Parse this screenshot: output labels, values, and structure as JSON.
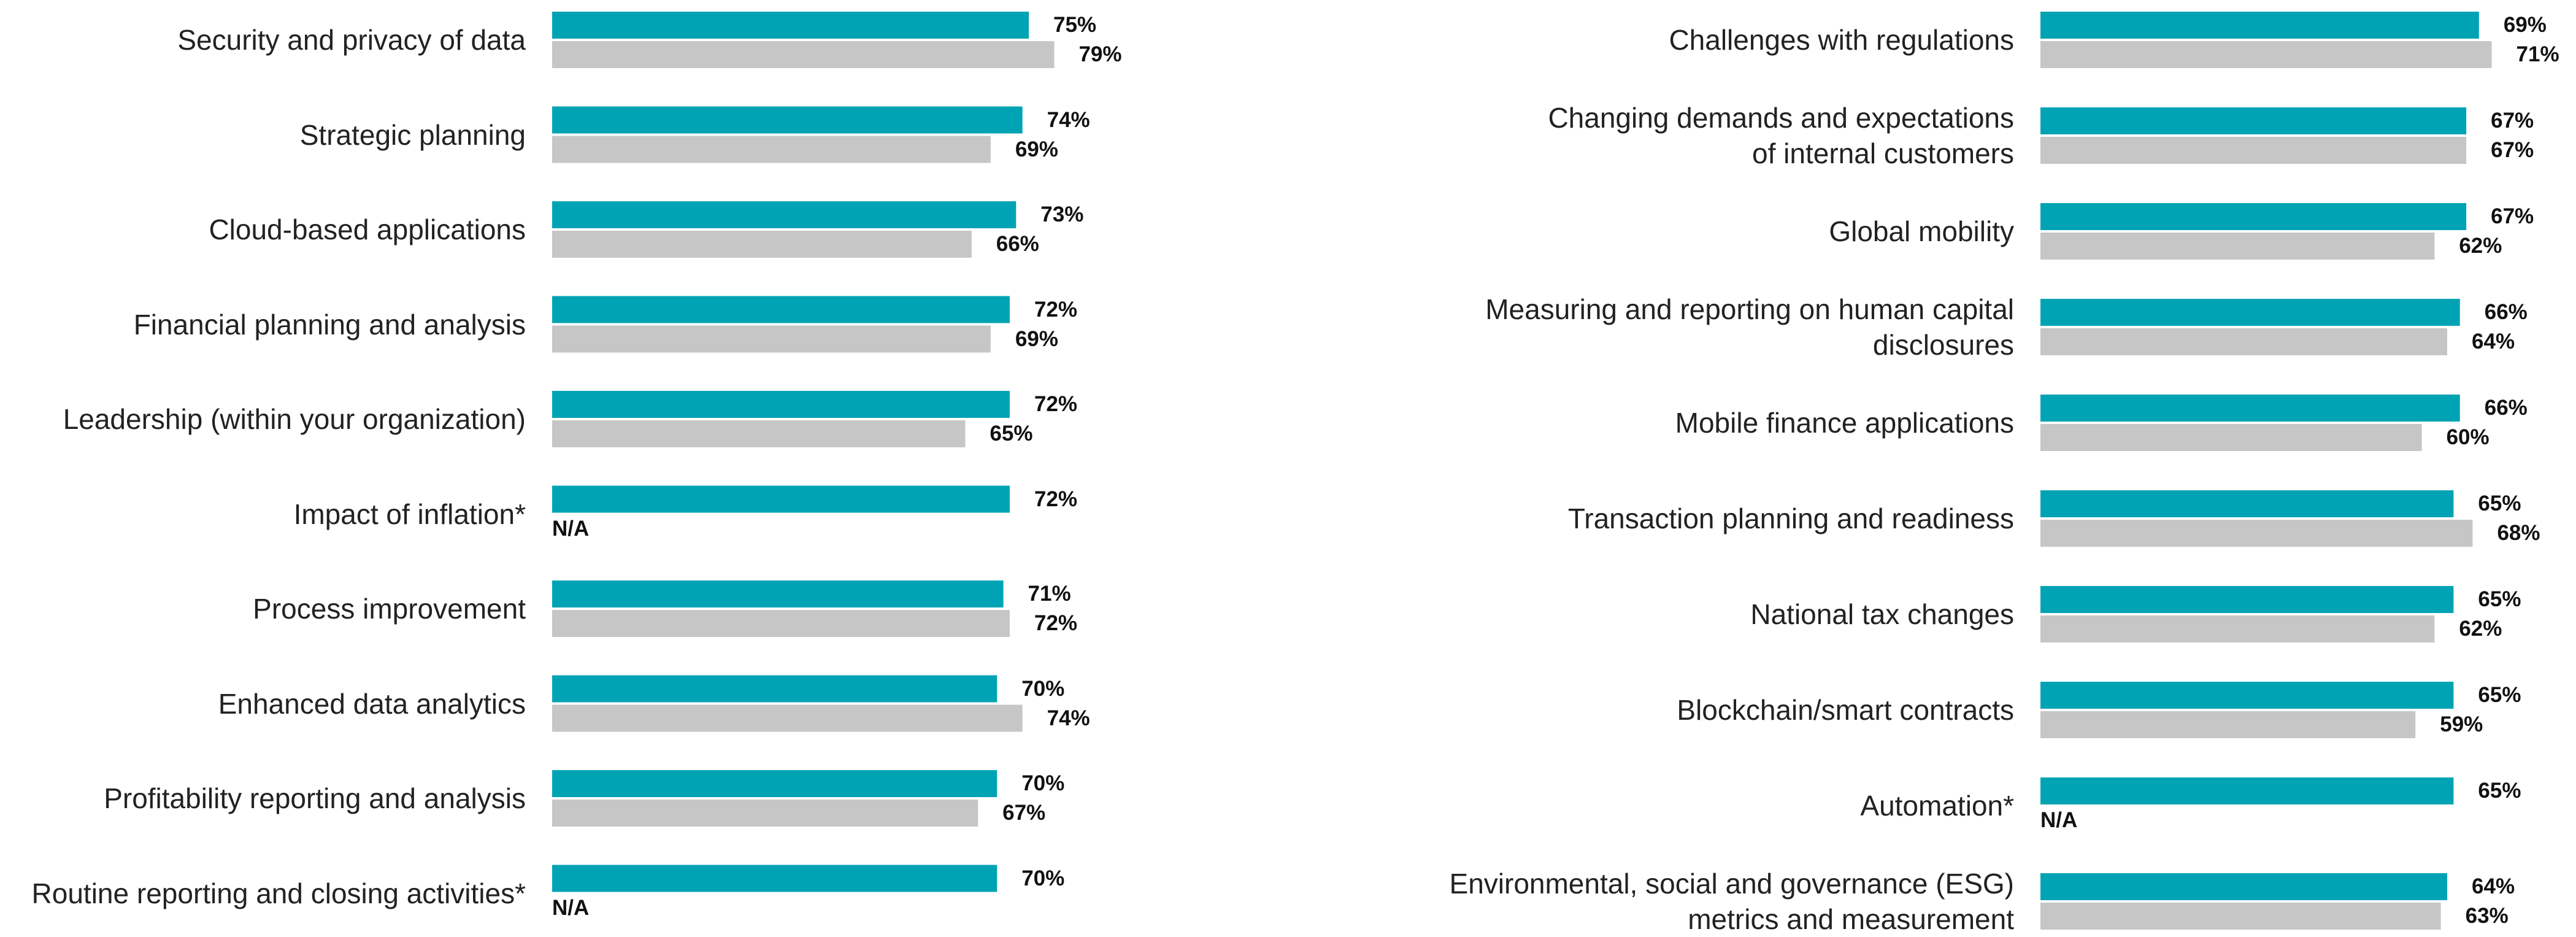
{
  "chart_data": [
    {
      "type": "bar",
      "orientation": "horizontal",
      "categories": [
        "Security and privacy of data",
        "Strategic planning",
        "Cloud-based applications",
        "Financial planning and analysis",
        "Leadership (within your organization)",
        "Impact of inflation*",
        "Process improvement",
        "Enhanced data analytics",
        "Profitability reporting and analysis",
        "Routine reporting and closing activities*"
      ],
      "xlim": [
        0,
        100
      ],
      "series": [
        {
          "color": "#00a3b4",
          "values": [
            75,
            74,
            73,
            72,
            72,
            72,
            71,
            70,
            70,
            70
          ],
          "value_labels": [
            "75%",
            "74%",
            "73%",
            "72%",
            "72%",
            "72%",
            "71%",
            "70%",
            "70%",
            "70%"
          ]
        },
        {
          "color": "#c6c6c6",
          "values": [
            79,
            69,
            66,
            69,
            65,
            null,
            72,
            74,
            67,
            null
          ],
          "value_labels": [
            "79%",
            "69%",
            "66%",
            "69%",
            "65%",
            "N/A",
            "72%",
            "74%",
            "67%",
            "N/A"
          ]
        }
      ]
    },
    {
      "type": "bar",
      "orientation": "horizontal",
      "categories": [
        "Challenges with regulations",
        "Changing demands and expectations\nof internal customers",
        "Global mobility",
        "Measuring and reporting on human capital\ndisclosures",
        "Mobile finance applications",
        "Transaction planning and readiness",
        "National tax changes",
        "Blockchain/smart contracts",
        "Automation*",
        "Environmental, social and governance (ESG)\nmetrics and measurement"
      ],
      "xlim": [
        0,
        100
      ],
      "series": [
        {
          "color": "#00a3b4",
          "values": [
            69,
            67,
            67,
            66,
            66,
            65,
            65,
            65,
            65,
            64
          ],
          "value_labels": [
            "69%",
            "67%",
            "67%",
            "66%",
            "66%",
            "65%",
            "65%",
            "65%",
            "65%",
            "64%"
          ]
        },
        {
          "color": "#c6c6c6",
          "values": [
            71,
            67,
            62,
            64,
            60,
            68,
            62,
            59,
            null,
            63
          ],
          "value_labels": [
            "71%",
            "67%",
            "62%",
            "64%",
            "60%",
            "68%",
            "62%",
            "59%",
            "N/A",
            "63%"
          ]
        }
      ]
    }
  ]
}
